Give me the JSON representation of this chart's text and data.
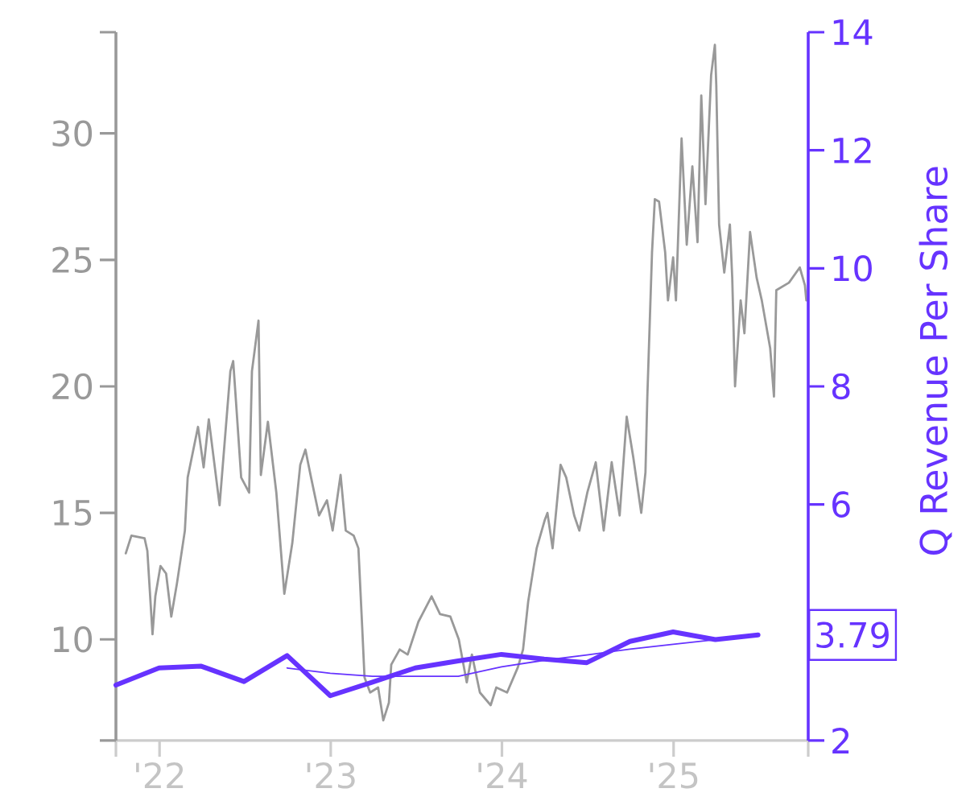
{
  "chart_data": {
    "type": "line",
    "y2label": "Q Revenue Per Share",
    "xlim": [
      "2021-09-30",
      "2025-10-15"
    ],
    "xticks": [
      {
        "value": "2021-09-30",
        "label": null
      },
      {
        "value": "2022",
        "label": "'22"
      },
      {
        "value": "2023",
        "label": "'23"
      },
      {
        "value": "2024",
        "label": "'24"
      },
      {
        "value": "2025",
        "label": "'25"
      },
      {
        "value": "2025-10-15",
        "label": null
      }
    ],
    "ylim": [
      6,
      34
    ],
    "yticks": [
      {
        "value": 6,
        "label": null
      },
      10,
      15,
      20,
      25,
      30,
      {
        "value": 34,
        "label": null
      }
    ],
    "y2lim": [
      2,
      14
    ],
    "y2ticks": [
      2,
      6,
      8,
      10,
      12,
      14
    ],
    "series": [
      {
        "color": "#999999",
        "x": [
          "2021-10-21",
          "2021-11-02",
          "2021-11-30",
          "2021-12-06",
          "2021-12-17",
          "2021-12-23",
          "2022-01-03",
          "2022-01-15",
          "2022-01-26",
          "2022-02-07",
          "2022-02-24",
          "2022-03-02",
          "2022-03-24",
          "2022-04-05",
          "2022-04-16",
          "2022-05-09",
          "2022-06-01",
          "2022-06-07",
          "2022-06-13",
          "2022-06-24",
          "2022-07-11",
          "2022-07-17",
          "2022-07-31",
          "2022-08-05",
          "2022-08-20",
          "2022-09-07",
          "2022-09-24",
          "2022-10-11",
          "2022-10-28",
          "2022-11-08",
          "2022-11-20",
          "2022-12-07",
          "2022-12-24",
          "2023-01-05",
          "2023-01-22",
          "2023-02-02",
          "2023-02-19",
          "2023-03-01",
          "2023-03-09",
          "2023-03-14",
          "2023-03-26",
          "2023-04-12",
          "2023-04-23",
          "2023-05-05",
          "2023-05-10",
          "2023-05-28",
          "2023-06-14",
          "2023-07-07",
          "2023-08-04",
          "2023-08-22",
          "2023-09-13",
          "2023-10-01",
          "2023-10-18",
          "2023-10-29",
          "2023-11-15",
          "2023-12-08",
          "2023-12-20",
          "2024-01-12",
          "2024-02-04",
          "2024-02-15",
          "2024-02-26",
          "2024-03-03",
          "2024-03-15",
          "2024-04-01",
          "2024-04-07",
          "2024-04-18",
          "2024-05-05",
          "2024-05-17",
          "2024-06-03",
          "2024-06-14",
          "2024-07-01",
          "2024-07-19",
          "2024-08-05",
          "2024-08-22",
          "2024-09-08",
          "2024-09-23",
          "2024-10-07",
          "2024-10-24",
          "2024-11-02",
          "2024-11-06",
          "2024-11-16",
          "2024-11-22",
          "2024-12-01",
          "2024-12-14",
          "2024-12-20",
          "2024-12-31",
          "2025-01-06",
          "2025-01-18",
          "2025-01-29",
          "2025-02-10",
          "2025-02-21",
          "2025-03-01",
          "2025-03-10",
          "2025-03-22",
          "2025-03-30",
          "2025-04-02",
          "2025-04-08",
          "2025-04-19",
          "2025-05-01",
          "2025-05-06",
          "2025-05-12",
          "2025-05-24",
          "2025-06-01",
          "2025-06-13",
          "2025-06-27",
          "2025-07-08",
          "2025-07-26",
          "2025-08-03",
          "2025-08-08",
          "2025-09-04",
          "2025-09-27",
          "2025-10-08",
          "2025-10-11"
        ],
        "values": [
          13.4,
          14.1,
          14.0,
          13.5,
          10.2,
          11.7,
          12.9,
          12.6,
          10.9,
          12.2,
          14.3,
          16.4,
          18.4,
          16.8,
          18.7,
          15.3,
          20.6,
          21.0,
          19.4,
          16.4,
          15.8,
          20.6,
          22.6,
          16.5,
          18.6,
          15.8,
          11.8,
          13.8,
          16.9,
          17.5,
          16.4,
          14.9,
          15.5,
          14.3,
          16.5,
          14.3,
          14.1,
          13.6,
          10.5,
          8.5,
          7.9,
          8.1,
          6.8,
          7.5,
          9.0,
          9.6,
          9.4,
          10.7,
          11.7,
          11.0,
          10.9,
          10.0,
          8.3,
          9.4,
          7.9,
          7.4,
          8.1,
          7.9,
          8.9,
          9.6,
          11.5,
          12.2,
          13.6,
          14.7,
          15.0,
          13.6,
          16.9,
          16.4,
          14.9,
          14.3,
          15.8,
          17.0,
          14.3,
          17.0,
          14.9,
          18.8,
          17.2,
          15.0,
          16.6,
          19.6,
          25.3,
          27.4,
          27.3,
          25.3,
          23.4,
          25.1,
          23.4,
          29.8,
          25.6,
          28.7,
          25.7,
          31.5,
          27.2,
          32.3,
          33.5,
          31.9,
          26.4,
          24.5,
          26.4,
          24.3,
          20.0,
          23.4,
          22.1,
          26.1,
          24.3,
          23.4,
          21.5,
          19.6,
          23.8,
          24.1,
          24.7,
          24.0,
          23.4
        ]
      },
      {
        "color": "#6633ff",
        "axis": "y2",
        "x": [
          "2021-09-30",
          "2021-12-31",
          "2022-03-31",
          "2022-06-30",
          "2022-09-30",
          "2022-12-31",
          "2023-03-31",
          "2023-06-30",
          "2023-09-30",
          "2023-12-31",
          "2024-03-31",
          "2024-06-30",
          "2024-09-30",
          "2024-12-31",
          "2025-03-31",
          "2025-06-30"
        ],
        "values": [
          2.94,
          3.23,
          3.26,
          3.0,
          3.44,
          2.76,
          2.99,
          3.23,
          3.35,
          3.46,
          3.38,
          3.32,
          3.68,
          3.84,
          3.71,
          3.79
        ],
        "value_labels": [
          null,
          null,
          null,
          null,
          null,
          null,
          null,
          null,
          null,
          null,
          null,
          null,
          null,
          null,
          null,
          "3.79"
        ]
      },
      {
        "color": "#6633ff",
        "axis": "y2",
        "x": [
          "2022-09-30",
          "2022-12-31",
          "2023-03-31",
          "2023-06-30",
          "2023-09-30",
          "2023-12-31",
          "2024-03-31",
          "2024-06-30",
          "2024-09-30",
          "2024-12-31",
          "2025-03-31",
          "2025-06-30"
        ],
        "values": [
          3.23,
          3.14,
          3.09,
          3.09,
          3.09,
          3.25,
          3.36,
          3.45,
          3.55,
          3.63,
          3.71,
          3.79
        ]
      }
    ]
  }
}
